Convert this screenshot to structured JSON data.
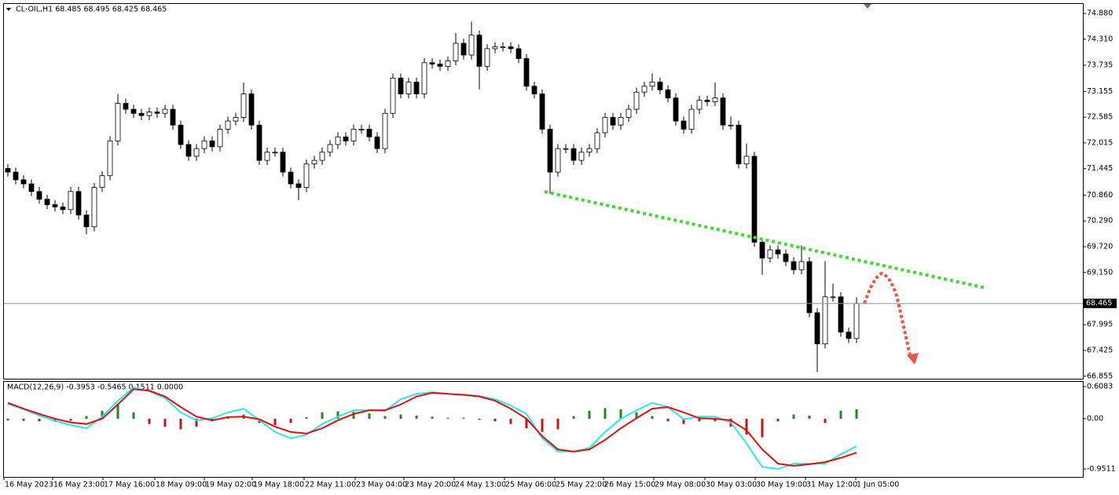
{
  "chart_data": [
    {
      "type": "candlestick",
      "title": "CL-OIL,H1  68.485 68.495 68.425 68.465",
      "up_color": "#ffffff",
      "down_color": "#000000",
      "last": 68.465,
      "grid": false,
      "ylim": [
        66.8,
        75.09
      ],
      "yticks": [
        {
          "value": 74.88,
          "label": "74.880"
        },
        {
          "value": 74.31,
          "label": "74.310"
        },
        73.735,
        73.155,
        72.585,
        {
          "value": 72.015,
          "label": "72.015"
        },
        71.445,
        {
          "value": 70.86,
          "label": "70.860"
        },
        {
          "value": 70.29,
          "label": "70.290"
        },
        {
          "value": 69.72,
          "label": "69.720"
        },
        {
          "value": 69.15,
          "label": "69.150"
        },
        67.995,
        67.425,
        66.855
      ],
      "open": [
        71.45,
        71.37,
        71.2,
        71.11,
        70.94,
        70.77,
        70.65,
        70.6,
        70.54,
        70.94,
        70.42,
        70.16,
        71.03,
        71.29,
        72.06,
        72.89,
        72.76,
        72.67,
        72.62,
        72.7,
        72.67,
        72.76,
        72.41,
        71.98,
        71.72,
        71.89,
        72.06,
        71.93,
        72.32,
        72.5,
        72.58,
        73.1,
        72.41,
        71.63,
        71.81,
        71.81,
        71.37,
        71.11,
        71.03,
        71.55,
        71.63,
        71.81,
        71.98,
        72.15,
        72.06,
        72.32,
        72.32,
        72.15,
        71.89,
        72.67,
        73.45,
        73.1,
        73.36,
        73.1,
        73.79,
        73.76,
        73.71,
        73.83,
        74.22,
        73.96,
        74.4,
        73.71,
        74.1,
        74.14,
        74.14,
        74.1,
        73.88,
        73.27,
        73.1,
        72.32,
        71.37,
        71.89,
        71.89,
        71.63,
        71.81,
        71.89,
        72.24,
        72.58,
        72.41,
        72.58,
        72.76,
        73.14,
        73.27,
        73.36,
        73.19,
        73.01,
        72.5,
        72.32,
        72.76,
        72.96,
        72.93,
        73.01,
        72.41,
        72.41,
        71.55,
        71.72,
        69.82,
        69.47,
        69.65,
        69.56,
        69.39,
        69.21,
        69.39,
        68.26,
        67.57,
        68.61,
        68.61,
        67.83,
        67.69
      ],
      "high": [
        71.55,
        71.47,
        71.3,
        71.21,
        71.04,
        70.87,
        70.75,
        70.7,
        71.04,
        71.04,
        70.52,
        71.13,
        71.39,
        72.16,
        73.1,
        72.99,
        72.86,
        72.77,
        72.8,
        72.8,
        72.86,
        72.86,
        72.51,
        72.08,
        71.99,
        72.16,
        72.16,
        72.42,
        72.6,
        72.68,
        73.35,
        73.2,
        72.51,
        71.91,
        71.91,
        71.91,
        71.47,
        71.21,
        71.65,
        71.73,
        71.91,
        72.08,
        72.25,
        72.25,
        72.42,
        72.42,
        72.42,
        72.25,
        72.77,
        73.55,
        73.55,
        73.46,
        73.46,
        73.89,
        73.89,
        73.86,
        73.93,
        74.45,
        74.32,
        74.7,
        74.5,
        74.2,
        74.24,
        74.24,
        74.24,
        74.2,
        73.98,
        73.37,
        73.2,
        72.42,
        71.99,
        71.99,
        71.99,
        71.91,
        71.99,
        72.34,
        72.68,
        72.68,
        72.68,
        72.86,
        73.24,
        73.37,
        73.55,
        73.46,
        73.29,
        73.11,
        72.6,
        72.86,
        73.06,
        73.06,
        73.35,
        73.11,
        72.6,
        72.51,
        72.0,
        71.82,
        69.92,
        69.75,
        69.75,
        69.66,
        69.49,
        69.75,
        69.49,
        68.36,
        69.4,
        68.9,
        68.71,
        67.93,
        68.6
      ],
      "low": [
        71.27,
        71.1,
        71.01,
        70.84,
        70.67,
        70.55,
        70.5,
        70.44,
        70.44,
        70.32,
        70.0,
        70.06,
        70.93,
        71.19,
        71.96,
        72.66,
        72.57,
        72.52,
        72.52,
        72.57,
        72.57,
        72.31,
        71.88,
        71.62,
        71.62,
        71.79,
        71.83,
        71.83,
        72.22,
        72.4,
        72.48,
        72.31,
        71.53,
        71.53,
        71.71,
        71.27,
        71.01,
        70.75,
        70.93,
        71.45,
        71.53,
        71.71,
        71.88,
        71.96,
        71.96,
        72.22,
        72.05,
        71.79,
        71.79,
        72.57,
        73.0,
        73.0,
        73.0,
        73.0,
        73.66,
        73.61,
        73.61,
        73.73,
        73.86,
        73.86,
        73.2,
        73.61,
        74.0,
        74.04,
        74.0,
        73.78,
        73.17,
        73.0,
        72.22,
        70.9,
        71.27,
        71.79,
        71.53,
        71.53,
        71.71,
        71.79,
        72.14,
        72.31,
        72.31,
        72.48,
        72.66,
        73.04,
        73.17,
        73.09,
        72.91,
        72.4,
        72.22,
        72.22,
        72.66,
        72.83,
        72.83,
        72.31,
        72.31,
        71.45,
        71.45,
        69.72,
        69.1,
        69.37,
        69.46,
        69.29,
        69.11,
        69.11,
        68.16,
        66.95,
        67.47,
        68.51,
        67.73,
        67.59,
        67.59
      ],
      "close": [
        71.37,
        71.2,
        71.11,
        70.94,
        70.77,
        70.65,
        70.6,
        70.54,
        70.94,
        70.42,
        70.16,
        71.03,
        71.29,
        72.06,
        72.89,
        72.76,
        72.67,
        72.62,
        72.7,
        72.67,
        72.76,
        72.41,
        71.98,
        71.72,
        71.89,
        72.06,
        71.93,
        72.32,
        72.5,
        72.58,
        73.1,
        72.41,
        71.63,
        71.81,
        71.81,
        71.37,
        71.11,
        71.03,
        71.55,
        71.63,
        71.81,
        71.98,
        72.15,
        72.06,
        72.32,
        72.32,
        72.15,
        71.89,
        72.67,
        73.45,
        73.1,
        73.36,
        73.1,
        73.79,
        73.76,
        73.71,
        73.83,
        74.22,
        73.96,
        74.4,
        73.71,
        74.1,
        74.14,
        74.14,
        74.1,
        73.88,
        73.27,
        73.1,
        72.32,
        71.37,
        71.89,
        71.89,
        71.63,
        71.81,
        71.89,
        72.24,
        72.58,
        72.41,
        72.58,
        72.76,
        73.14,
        73.27,
        73.36,
        73.19,
        73.01,
        72.5,
        72.32,
        72.76,
        72.96,
        72.93,
        73.01,
        72.41,
        72.41,
        71.55,
        71.72,
        69.82,
        69.47,
        69.65,
        69.56,
        69.39,
        69.21,
        69.39,
        68.26,
        67.57,
        68.61,
        68.61,
        67.83,
        67.69,
        68.465
      ]
    },
    {
      "type": "macd",
      "title": "MACD(12,26,9) -0.3953 -0.5465 0.1511 0.0000",
      "ylim": [
        -1.1,
        0.712
      ],
      "yticks": [
        0.6083,
        {
          "value": 0,
          "label": "0.00"
        },
        -0.9511
      ],
      "xlim": [
        0,
        137.3
      ],
      "xticks": [
        {
          "value": 0,
          "label": "16 May 2023"
        },
        {
          "value": 6.2,
          "label": "16 May 23:00"
        },
        {
          "value": 12.6,
          "label": "17 May 16:00"
        },
        {
          "value": 19.2,
          "label": "18 May 09:00"
        },
        {
          "value": 25.5,
          "label": "19 May 02:00"
        },
        {
          "value": 31.6,
          "label": "19 May 18:00"
        },
        {
          "value": 38.2,
          "label": "22 May 11:00"
        },
        {
          "value": 44.7,
          "label": "23 May 04:00"
        },
        {
          "value": 50.9,
          "label": "23 May 20:00"
        },
        {
          "value": 57.3,
          "label": "24 May 13:00"
        },
        {
          "value": 63.7,
          "label": "25 May 06:00"
        },
        {
          "value": 70.1,
          "label": "25 May 22:00"
        },
        {
          "value": 76.3,
          "label": "26 May 15:00"
        },
        {
          "value": 82.7,
          "label": "29 May 08:00"
        },
        {
          "value": 89.2,
          "label": "30 May 03:00"
        },
        {
          "value": 95.6,
          "label": "30 May 19:00"
        },
        {
          "value": 102,
          "label": "31 May 12:00"
        },
        {
          "value": 108.4,
          "label": "1 Jun 05:00"
        }
      ],
      "x": [
        0.5,
        2.5,
        4.5,
        6.5,
        8.5,
        10.5,
        12.5,
        14.5,
        16.5,
        18.5,
        20.5,
        22.5,
        24.5,
        26.5,
        28.5,
        30.5,
        32.5,
        34.5,
        36.5,
        38.5,
        40.5,
        42.5,
        44.5,
        46.5,
        48.5,
        50.5,
        52.5,
        54.5,
        56.5,
        58.5,
        60.5,
        62.5,
        64.5,
        66.5,
        68.5,
        70.5,
        72.5,
        74.5,
        76.5,
        78.5,
        80.5,
        82.5,
        84.5,
        86.5,
        88.5,
        90.5,
        92.5,
        94.5,
        96.5,
        98.5,
        100.5,
        102.5,
        104.5,
        106.5,
        108.5
      ],
      "series": [
        {
          "type": "bar",
          "color": "#1e8a1e",
          "negative_color": "#c01818",
          "values": [
            -0.03,
            -0.04,
            -0.05,
            -0.06,
            -0.04,
            0.05,
            0.15,
            0.28,
            0.12,
            -0.1,
            -0.15,
            -0.2,
            -0.15,
            -0.05,
            0.03,
            0.08,
            -0.08,
            -0.12,
            -0.08,
            0.03,
            0.12,
            0.14,
            0.13,
            0.1,
            0.05,
            0.08,
            0.06,
            0.04,
            0.02,
            0.02,
            -0.02,
            -0.05,
            -0.1,
            -0.18,
            -0.25,
            -0.2,
            0.05,
            0.15,
            0.2,
            0.18,
            0.12,
            0.05,
            -0.05,
            -0.1,
            -0.05,
            -0.05,
            -0.15,
            -0.3,
            -0.35,
            -0.05,
            0.08,
            0.06,
            -0.08,
            0.15,
            0.18
          ]
        },
        {
          "type": "line",
          "color": "#2ee6f0",
          "values": [
            0.28,
            0.18,
            0.06,
            -0.04,
            -0.12,
            -0.18,
            0.04,
            0.34,
            0.59,
            0.52,
            0.39,
            0.12,
            -0.03,
            0.01,
            0.12,
            0.19,
            -0.03,
            -0.25,
            -0.37,
            -0.3,
            -0.1,
            0.04,
            0.16,
            0.16,
            0.15,
            0.37,
            0.47,
            0.5,
            0.47,
            0.46,
            0.43,
            0.37,
            0.25,
            0.09,
            -0.37,
            -0.62,
            -0.62,
            -0.55,
            -0.25,
            0.0,
            0.16,
            0.3,
            0.22,
            -0.01,
            0.04,
            0.04,
            -0.07,
            -0.47,
            -0.91,
            -0.95,
            -0.85,
            -0.85,
            -0.85,
            -0.67,
            -0.52
          ]
        },
        {
          "type": "line",
          "color": "#e01010",
          "values": [
            0.3,
            0.19,
            0.09,
            0.0,
            -0.07,
            -0.1,
            0.0,
            0.27,
            0.56,
            0.53,
            0.42,
            0.22,
            0.04,
            -0.03,
            0.03,
            0.04,
            -0.01,
            -0.15,
            -0.25,
            -0.28,
            -0.18,
            -0.03,
            0.09,
            0.16,
            0.16,
            0.27,
            0.42,
            0.49,
            0.47,
            0.45,
            0.42,
            0.34,
            0.19,
            0.0,
            -0.33,
            -0.58,
            -0.62,
            -0.58,
            -0.4,
            -0.18,
            0.01,
            0.19,
            0.22,
            0.12,
            0.01,
            0.0,
            -0.03,
            -0.22,
            -0.58,
            -0.85,
            -0.89,
            -0.86,
            -0.82,
            -0.74,
            -0.64
          ]
        }
      ]
    }
  ]
}
